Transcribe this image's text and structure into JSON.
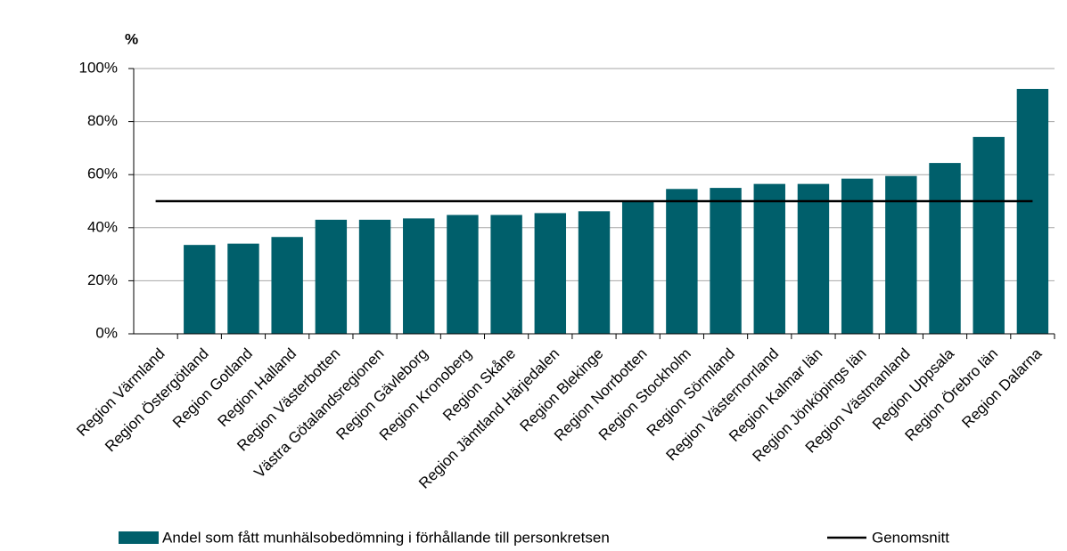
{
  "chart_data": {
    "type": "bar",
    "y_unit_label": "%",
    "categories": [
      "Region Värmland",
      "Region Östergötland",
      "Region Gotland",
      "Region Halland",
      "Region Västerbotten",
      "Västra Götalandsregionen",
      "Region Gävleborg",
      "Region Kronoberg",
      "Region Skåne",
      "Region Jämtland Härjedalen",
      "Region Blekinge",
      "Region Norrbotten",
      "Region Stockholm",
      "Region Sörmland",
      "Region Västernorrland",
      "Region Kalmar län",
      "Region Jönköpings län",
      "Region Västmanland",
      "Region Uppsala",
      "Region Örebro län",
      "Region Dalarna"
    ],
    "series": [
      {
        "name": "Andel som fått munhälsobedömning i förhållande till personkretsen",
        "color": "#005f6b",
        "values": [
          0,
          33.5,
          34,
          36.5,
          43,
          43,
          43.5,
          44.8,
          44.8,
          45.5,
          46.2,
          50,
          54.6,
          55,
          56.5,
          56.5,
          58.5,
          59.5,
          64.4,
          74.2,
          92.3
        ]
      }
    ],
    "average": {
      "name": "Genomsnitt",
      "value": 50,
      "color": "#000000"
    },
    "ylim": [
      0,
      100
    ],
    "yticks": [
      {
        "value": 0,
        "label": "0%"
      },
      {
        "value": 20,
        "label": "20%"
      },
      {
        "value": 40,
        "label": "40%"
      },
      {
        "value": 60,
        "label": "60%"
      },
      {
        "value": 80,
        "label": "80%"
      },
      {
        "value": 100,
        "label": "100%"
      }
    ],
    "grid": true
  }
}
